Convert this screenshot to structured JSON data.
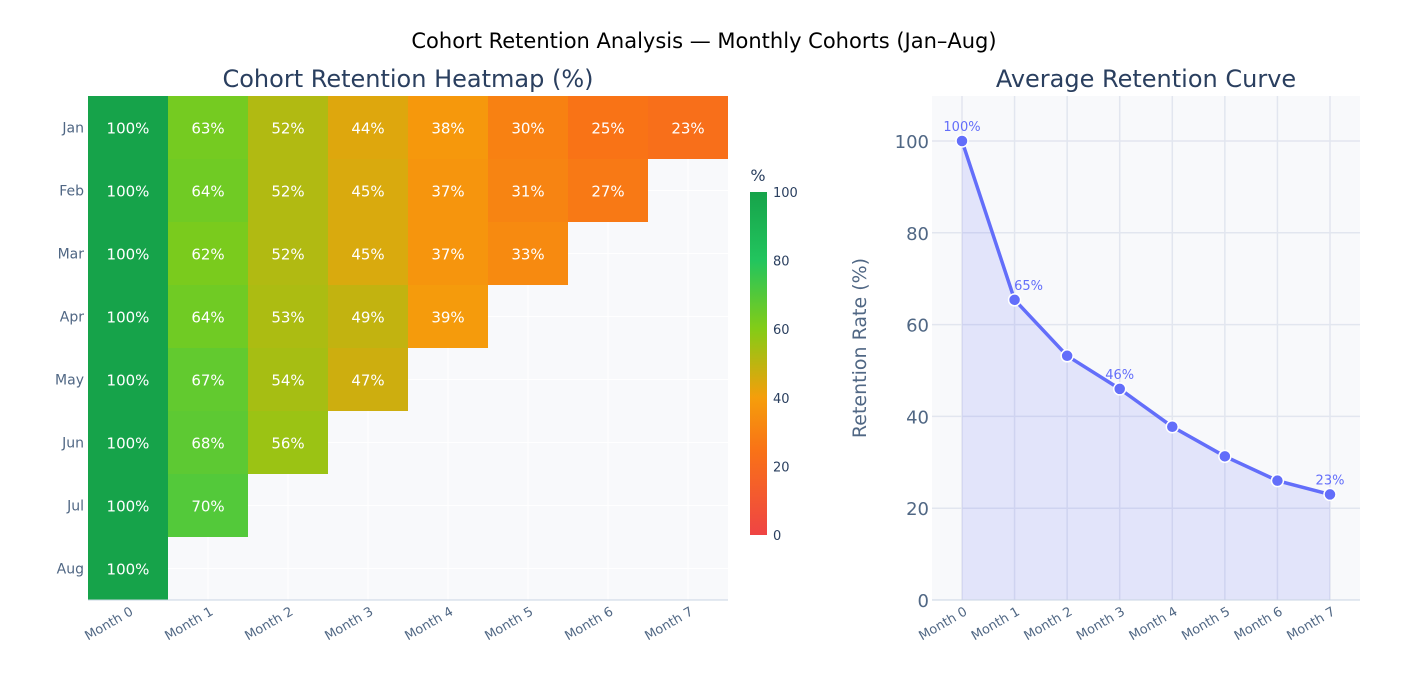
{
  "title": "Cohort Retention Analysis — Monthly Cohorts (Jan–Aug)",
  "chart_data": [
    {
      "type": "heatmap",
      "title": "Cohort Retention Heatmap (%)",
      "x_categories": [
        "Month 0",
        "Month 1",
        "Month 2",
        "Month 3",
        "Month 4",
        "Month 5",
        "Month 6",
        "Month 7"
      ],
      "y_categories": [
        "Jan",
        "Feb",
        "Mar",
        "Apr",
        "May",
        "Jun",
        "Jul",
        "Aug"
      ],
      "values": [
        [
          100,
          63,
          52,
          44,
          38,
          30,
          25,
          23
        ],
        [
          100,
          64,
          52,
          45,
          37,
          31,
          27,
          null
        ],
        [
          100,
          62,
          52,
          45,
          37,
          33,
          null,
          null
        ],
        [
          100,
          64,
          53,
          49,
          39,
          null,
          null,
          null
        ],
        [
          100,
          67,
          54,
          47,
          null,
          null,
          null,
          null
        ],
        [
          100,
          68,
          56,
          null,
          null,
          null,
          null,
          null
        ],
        [
          100,
          70,
          null,
          null,
          null,
          null,
          null,
          null
        ],
        [
          100,
          null,
          null,
          null,
          null,
          null,
          null,
          null
        ]
      ],
      "value_suffix": "%",
      "colorbar": {
        "title": "%",
        "range": [
          0,
          100
        ],
        "ticks": [
          0,
          20,
          40,
          60,
          80,
          100
        ],
        "colorscale": [
          [
            0,
            "#ef4444"
          ],
          [
            25,
            "#f97316"
          ],
          [
            40,
            "#f59e0b"
          ],
          [
            60,
            "#84cc16"
          ],
          [
            80,
            "#22c55e"
          ],
          [
            100,
            "#16a34a"
          ]
        ]
      }
    },
    {
      "type": "area",
      "title": "Average Retention Curve",
      "x": [
        "Month 0",
        "Month 1",
        "Month 2",
        "Month 3",
        "Month 4",
        "Month 5",
        "Month 6",
        "Month 7"
      ],
      "y": [
        100,
        65.4,
        53.2,
        46,
        37.75,
        31.3,
        26,
        23
      ],
      "data_labels": [
        "100%",
        "65%",
        "",
        "46%",
        "",
        "",
        "",
        "23%"
      ],
      "ylabel": "Retention Rate (%)",
      "ylim": [
        0,
        110
      ],
      "yticks": [
        0,
        20,
        40,
        60,
        80,
        100
      ],
      "grid": true,
      "color": "#636efa"
    }
  ]
}
